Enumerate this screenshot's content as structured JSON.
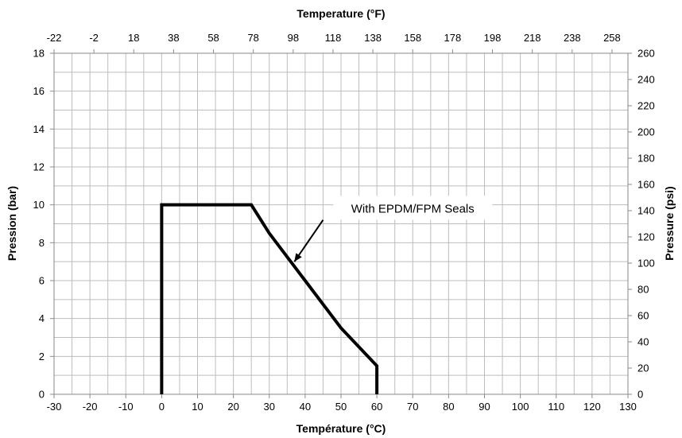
{
  "chart_data": {
    "type": "line",
    "title": "",
    "xlabel": "Température (°C)",
    "ylabel": "Pression (bar)",
    "x2label": "Temperature (°F)",
    "y2label": "Pressure (psi)",
    "xlim": [
      -30,
      130
    ],
    "ylim": [
      0,
      18
    ],
    "x2lim": [
      -22,
      266
    ],
    "y2lim": [
      0,
      260
    ],
    "x_ticks": [
      -30,
      -20,
      -10,
      0,
      10,
      20,
      30,
      40,
      50,
      60,
      70,
      80,
      90,
      100,
      110,
      120,
      130
    ],
    "y_ticks": [
      0,
      2,
      4,
      6,
      8,
      10,
      12,
      14,
      16,
      18
    ],
    "x2_ticks": [
      -22,
      -2,
      18,
      38,
      58,
      78,
      98,
      118,
      138,
      158,
      178,
      198,
      218,
      238,
      258
    ],
    "y2_ticks": [
      0,
      20,
      40,
      60,
      80,
      100,
      120,
      140,
      160,
      180,
      200,
      220,
      240,
      260
    ],
    "grid": true,
    "series": [
      {
        "name": "",
        "x": [
          0,
          0,
          25,
          30,
          40,
          50,
          60,
          60
        ],
        "y": [
          0,
          10,
          10,
          8.5,
          6,
          3.5,
          1.5,
          0
        ]
      }
    ],
    "annotation": {
      "text": "With EPDM/FPM Seals",
      "at": [
        37,
        7
      ],
      "arrow_from": [
        45,
        9.2
      ],
      "text_at": [
        70,
        9.8
      ]
    }
  }
}
